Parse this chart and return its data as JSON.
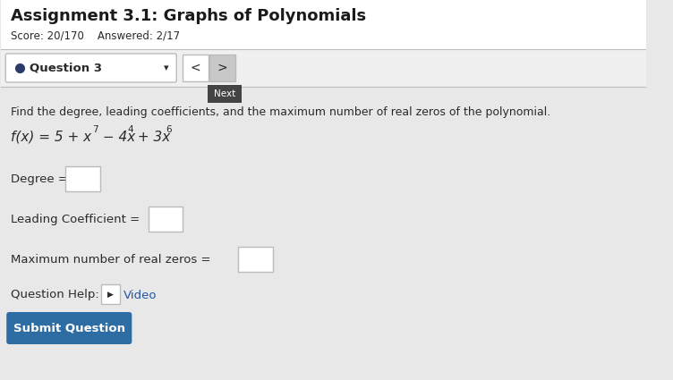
{
  "title": "Assignment 3.1: Graphs of Polynomials",
  "score_line": "Score: 20/170    Answered: 2/17",
  "question_label": "●  Question 3",
  "dropdown_arrow": "▾",
  "nav_left": "<",
  "nav_right": ">",
  "tooltip_text": "Next",
  "instruction": "Find the degree, leading coefficients, and the maximum number of real zeros of the polynomial.",
  "function_label": "f(x) = 5 + x",
  "function_sup7": "7",
  "function_mid": " − 4x",
  "function_sup4": "4",
  "function_mid2": " + 3x",
  "function_sup6": "6",
  "degree_label": "Degree = ",
  "leading_label": "Leading Coefficient = ",
  "maxzeros_label": "Maximum number of real zeros = ",
  "help_label": "Question Help:",
  "video_label": "Video",
  "submit_label": "Submit Question",
  "bg_color": "#e8e8e8",
  "content_bg": "#e8e8e8",
  "header_bg": "#ffffff",
  "toolbar_bg": "#f0f0f0",
  "border_color": "#bbbbbb",
  "white": "#ffffff",
  "title_color": "#1a1a1a",
  "body_color": "#2a2a2a",
  "link_color": "#2255aa",
  "dot_color": "#2a3a6a",
  "tooltip_bg": "#444444",
  "tooltip_fg": "#ffffff",
  "submit_bg": "#2e6da4",
  "submit_fg": "#ffffff",
  "nav_active_bg": "#c8c8c8"
}
